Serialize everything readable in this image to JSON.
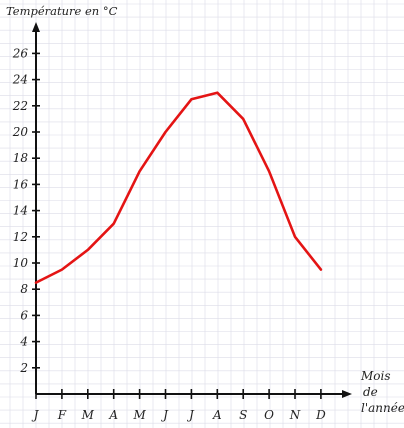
{
  "chart_data": {
    "type": "line",
    "ylabel": "Température en °C",
    "xlabel_lines": [
      "Mois",
      "de",
      "l'année"
    ],
    "categories": [
      "J",
      "F",
      "M",
      "A",
      "M",
      "J",
      "J",
      "A",
      "S",
      "O",
      "N",
      "D"
    ],
    "yticks": [
      2,
      4,
      6,
      8,
      10,
      12,
      14,
      16,
      18,
      20,
      22,
      24,
      26
    ],
    "ylim": [
      0,
      28
    ],
    "grid": true,
    "series": [
      {
        "values": [
          8.5,
          9.5,
          11,
          13,
          17,
          20,
          22.5,
          23,
          21,
          17,
          12,
          9.5
        ],
        "color": "#e41414"
      }
    ],
    "colors": {
      "axis": "#111111",
      "grid": "#dcdce8",
      "line": "#e41414"
    }
  }
}
